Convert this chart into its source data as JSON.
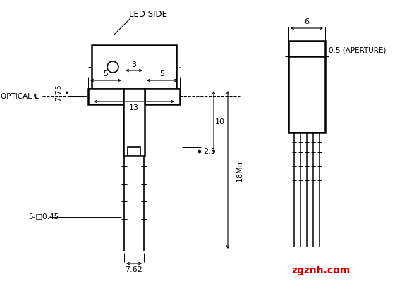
{
  "bg_color": "#ffffff",
  "line_color": "#000000",
  "text_color": "#000000",
  "red_color": "#cc0000",
  "watermark": "zgznh.com",
  "led_side_label": "LED SIDE",
  "dim_13": "13",
  "dim_5l": "5",
  "dim_5r": "5",
  "dim_3": "3",
  "dim_7_75": "7.75",
  "dim_2_5": "2.5",
  "dim_10": "10",
  "dim_18min": "18Min",
  "dim_pin": "5-□0.45",
  "dim_762": "7.62",
  "dim_6": "6",
  "dim_aperture": "0.5 (APERTURE)"
}
